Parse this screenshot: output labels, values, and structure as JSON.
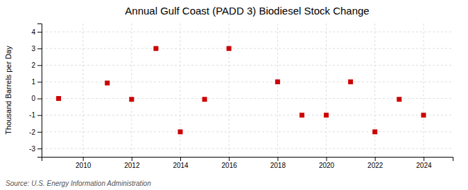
{
  "chart_data": {
    "type": "scatter",
    "title": "Annual Gulf Coast (PADD 3) Biodiesel Stock Change",
    "ylabel": "Thousand Barrels per Day",
    "annotations": [
      "Source: U.S. Energy Information Administration"
    ],
    "x": [
      2009,
      2011,
      2012,
      2013,
      2014,
      2015,
      2016,
      2018,
      2019,
      2020,
      2021,
      2022,
      2023,
      2024
    ],
    "values": [
      0.0,
      0.93,
      -0.05,
      3.0,
      -2.0,
      -0.05,
      3.0,
      1.0,
      -1.0,
      -1.0,
      1.0,
      -2.0,
      -0.05,
      -1.0
    ],
    "color": "#cc0000",
    "marker": "square",
    "xlim": [
      2008.3,
      2025.2
    ],
    "xticks": [
      2010,
      2012,
      2014,
      2016,
      2018,
      2020,
      2022,
      2024
    ],
    "ylim": [
      -3.5,
      4.5
    ],
    "yticks": [
      -3,
      -2,
      -1,
      0,
      1,
      2,
      3,
      4
    ],
    "grid": true
  }
}
